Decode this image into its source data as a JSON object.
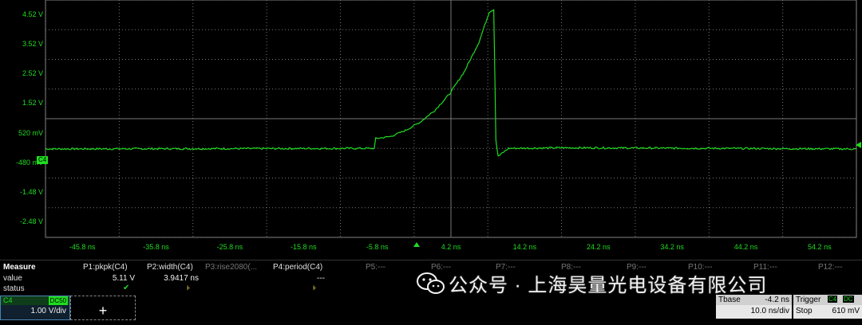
{
  "scope": {
    "y_labels": [
      "4.52 V",
      "3.52 V",
      "2.52 V",
      "1.52 V",
      "520 mV",
      "-480 mV",
      "-1.48 V",
      "-2.48 V"
    ],
    "x_labels": [
      "-45.8 ns",
      "-35.8 ns",
      "-25.8 ns",
      "-15.8 ns",
      "-5.8 ns",
      "4.2 ns",
      "14.2 ns",
      "24.2 ns",
      "34.2 ns",
      "44.2 ns",
      "54.2 ns"
    ],
    "channel_marker": "C4",
    "trace_color": "#1fdc1f",
    "grid_color": "#777777"
  },
  "chart_data": {
    "type": "line",
    "x_unit": "ns",
    "y_unit": "V",
    "xlim": [
      -50.8,
      59.2
    ],
    "ylim": [
      -2.98,
      5.02
    ],
    "x": [
      -50.8,
      -6.2,
      -6.0,
      -4,
      -2,
      0,
      2,
      4,
      6,
      8,
      9.4,
      10.0,
      10.3,
      10.6,
      12,
      20,
      40,
      59.2
    ],
    "y": [
      0,
      0.02,
      0.35,
      0.42,
      0.62,
      0.9,
      1.3,
      1.85,
      2.6,
      3.6,
      4.62,
      4.7,
      0.3,
      -0.25,
      0.02,
      0.04,
      0.02,
      0.0
    ],
    "grid": true
  },
  "measure": {
    "title": "Measure",
    "row_labels": [
      "value",
      "status"
    ],
    "params": [
      {
        "label": "P1:pkpk(C4)",
        "value": "5.11 V",
        "status": "check"
      },
      {
        "label": "P2:width(C4)",
        "value": "3.9417 ns",
        "status": "warn"
      },
      {
        "label": "P3:rise2080(...",
        "value": "",
        "status": ""
      },
      {
        "label": "P4:period(C4)",
        "value": "---",
        "status": "warn"
      },
      {
        "label": "P5:---",
        "value": "",
        "status": ""
      },
      {
        "label": "P6:---",
        "value": "",
        "status": ""
      },
      {
        "label": "P7:---",
        "value": "",
        "status": ""
      },
      {
        "label": "P8:---",
        "value": "",
        "status": ""
      },
      {
        "label": "P9:---",
        "value": "",
        "status": ""
      },
      {
        "label": "P10:---",
        "value": "",
        "status": ""
      },
      {
        "label": "P11:---",
        "value": "",
        "status": ""
      },
      {
        "label": "P12:---",
        "value": "",
        "status": ""
      }
    ]
  },
  "channel": {
    "name": "C4",
    "coupling": "DC50",
    "vdiv": "1.00 V/div"
  },
  "add_button": "+",
  "tbase": {
    "label": "Tbase",
    "value": "-4.2 ns",
    "div": "10.0 ns/div"
  },
  "trigger": {
    "label": "Trigger",
    "channel": "C4",
    "coupling": "DC",
    "mode": "Stop",
    "level": "610 mV"
  },
  "watermark": "公众号 · 上海昊量光电设备有限公司"
}
